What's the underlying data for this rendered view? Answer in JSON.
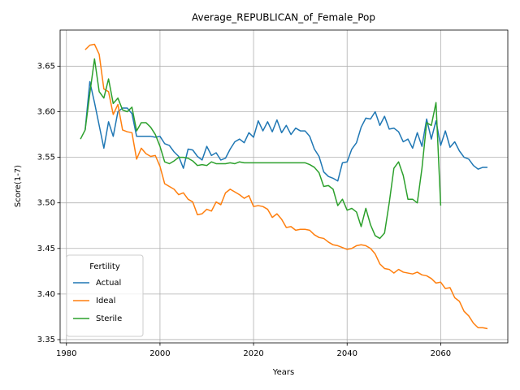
{
  "chart_data": {
    "type": "line",
    "title": "Average_REPUBLICAN_of_Female_Pop",
    "xlabel": "Years",
    "ylabel": "Score(1-7)",
    "x": [
      1983,
      1984,
      1985,
      1986,
      1987,
      1988,
      1989,
      1990,
      1991,
      1992,
      1993,
      1994,
      1995,
      1996,
      1997,
      1998,
      1999,
      2000,
      2001,
      2002,
      2003,
      2004,
      2005,
      2006,
      2007,
      2008,
      2009,
      2010,
      2011,
      2012,
      2013,
      2014,
      2015,
      2016,
      2017,
      2018,
      2019,
      2020,
      2021,
      2022,
      2023,
      2024,
      2025,
      2026,
      2027,
      2028,
      2029,
      2030,
      2031,
      2032,
      2033,
      2034,
      2035,
      2036,
      2037,
      2038,
      2039,
      2040,
      2041,
      2042,
      2043,
      2044,
      2045,
      2046,
      2047,
      2048,
      2049,
      2050,
      2051,
      2052,
      2053,
      2054,
      2055,
      2056,
      2057,
      2058,
      2059,
      2060,
      2061,
      2062,
      2063,
      2064,
      2065,
      2066,
      2067,
      2068,
      2069,
      2070
    ],
    "series": [
      {
        "name": "Actual",
        "color": "#1f77b4",
        "values": [
          null,
          3.58,
          3.633,
          3.61,
          3.585,
          3.56,
          3.589,
          3.573,
          3.6,
          3.604,
          3.604,
          3.598,
          3.573,
          3.573,
          3.573,
          3.573,
          3.572,
          3.573,
          3.565,
          3.563,
          3.556,
          3.551,
          3.538,
          3.559,
          3.558,
          3.551,
          3.547,
          3.562,
          3.552,
          3.555,
          3.547,
          3.549,
          3.559,
          3.567,
          3.57,
          3.566,
          3.577,
          3.572,
          3.59,
          3.579,
          3.589,
          3.578,
          3.591,
          3.577,
          3.585,
          3.575,
          3.582,
          3.579,
          3.579,
          3.573,
          3.559,
          3.551,
          3.534,
          3.529,
          3.527,
          3.524,
          3.544,
          3.545,
          3.559,
          3.566,
          3.583,
          3.593,
          3.592,
          3.6,
          3.585,
          3.595,
          3.581,
          3.582,
          3.578,
          3.567,
          3.57,
          3.56,
          3.577,
          3.562,
          3.592,
          3.57,
          3.59,
          3.563,
          3.579,
          3.561,
          3.567,
          3.557,
          3.55,
          3.548,
          3.541,
          3.537,
          3.539,
          3.539
        ]
      },
      {
        "name": "Ideal",
        "color": "#ff7f0e",
        "values": [
          null,
          3.668,
          3.673,
          3.674,
          3.663,
          3.625,
          3.622,
          3.597,
          3.608,
          3.58,
          3.578,
          3.577,
          3.548,
          3.56,
          3.554,
          3.551,
          3.552,
          3.54,
          3.521,
          3.518,
          3.515,
          3.509,
          3.511,
          3.504,
          3.501,
          3.487,
          3.488,
          3.493,
          3.491,
          3.501,
          3.498,
          3.511,
          3.515,
          3.512,
          3.509,
          3.505,
          3.508,
          3.496,
          3.497,
          3.496,
          3.493,
          3.484,
          3.488,
          3.482,
          3.473,
          3.474,
          3.47,
          3.471,
          3.471,
          3.47,
          3.465,
          3.462,
          3.461,
          3.457,
          3.454,
          3.453,
          3.451,
          3.449,
          3.45,
          3.453,
          3.454,
          3.453,
          3.45,
          3.444,
          3.433,
          3.428,
          3.427,
          3.423,
          3.427,
          3.424,
          3.423,
          3.422,
          3.424,
          3.421,
          3.42,
          3.417,
          3.412,
          3.413,
          3.406,
          3.407,
          3.396,
          3.392,
          3.381,
          3.376,
          3.368,
          3.363,
          3.363,
          3.362
        ]
      },
      {
        "name": "Sterile",
        "color": "#2ca02c",
        "values": [
          3.57,
          3.58,
          3.62,
          3.658,
          3.622,
          3.615,
          3.636,
          3.609,
          3.615,
          3.602,
          3.6,
          3.605,
          3.579,
          3.588,
          3.588,
          3.583,
          3.575,
          3.562,
          3.545,
          3.543,
          3.546,
          3.55,
          3.55,
          3.549,
          3.546,
          3.541,
          3.542,
          3.541,
          3.545,
          3.543,
          3.543,
          3.543,
          3.544,
          3.543,
          3.545,
          3.544,
          3.544,
          3.544,
          3.544,
          3.544,
          3.544,
          3.544,
          3.544,
          3.544,
          3.544,
          3.544,
          3.544,
          3.544,
          3.544,
          3.542,
          3.539,
          3.533,
          3.518,
          3.519,
          3.515,
          3.497,
          3.504,
          3.492,
          3.494,
          3.49,
          3.474,
          3.494,
          3.476,
          3.464,
          3.461,
          3.467,
          3.5,
          3.538,
          3.545,
          3.53,
          3.504,
          3.504,
          3.5,
          3.538,
          3.588,
          3.585,
          3.61,
          3.497,
          null,
          null,
          null,
          null,
          null,
          null,
          null,
          null,
          null,
          null
        ]
      }
    ],
    "xlim": [
      1978.65,
      2074.35
    ],
    "xticks": [
      1980,
      2000,
      2020,
      2040,
      2060
    ],
    "ylim": [
      3.3464,
      3.6896
    ],
    "yticks": [
      3.35,
      {
        "value": 3.4,
        "label": "3.40"
      },
      3.45,
      {
        "value": 3.5,
        "label": "3.50"
      },
      3.55,
      {
        "value": 3.6,
        "label": "3.60"
      },
      3.65
    ],
    "grid": true,
    "legend_title": "Fertility",
    "legend_position": "lower left"
  }
}
